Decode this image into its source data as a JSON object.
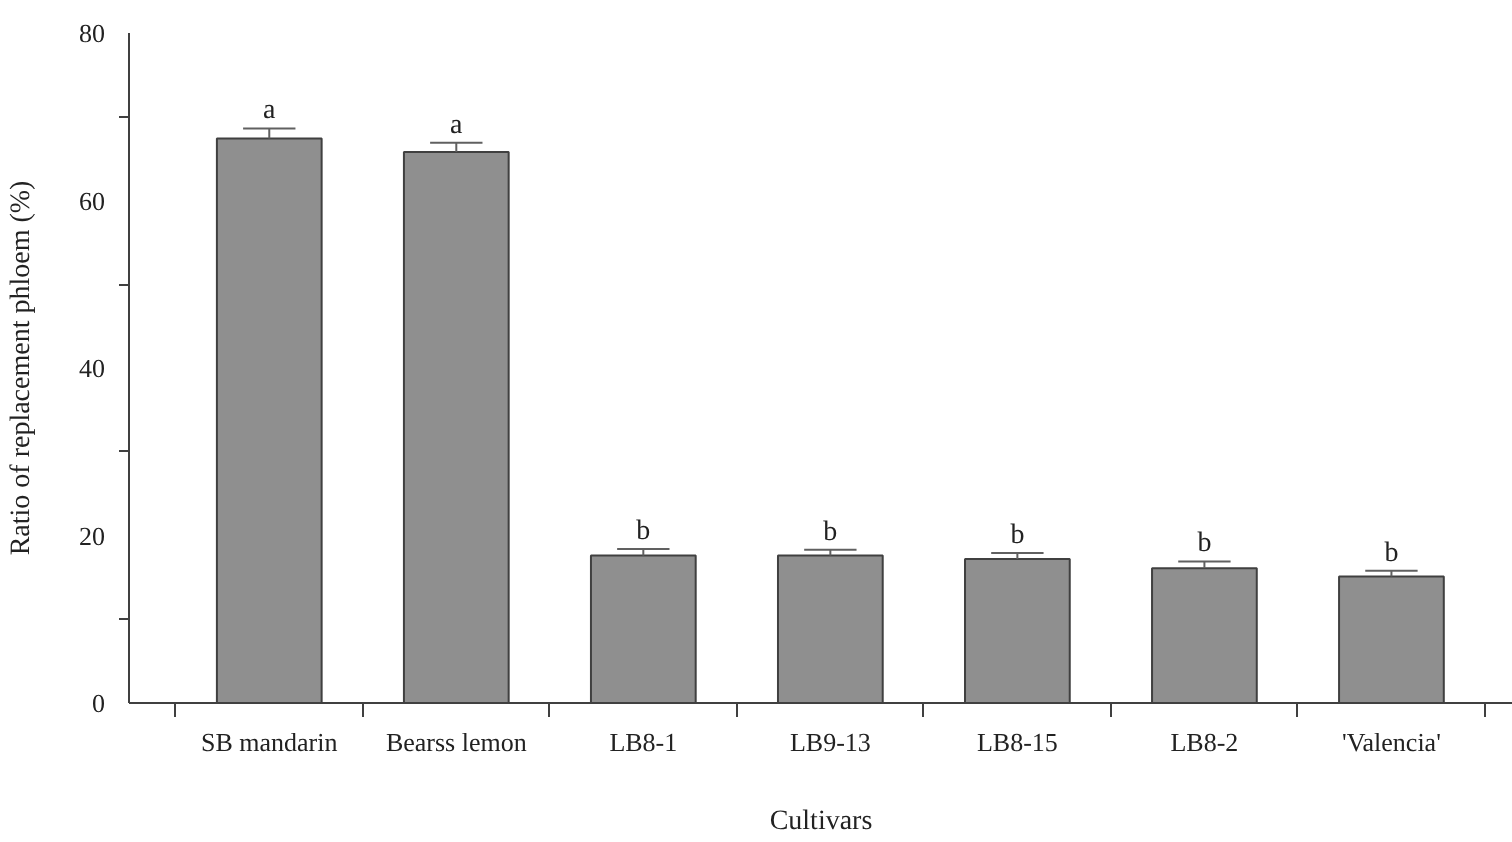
{
  "chart_data": {
    "type": "bar",
    "xlabel": "Cultivars",
    "ylabel": "Ratio of replacement phloem (%)",
    "categories": [
      "SB mandarin",
      "Bearss lemon",
      "LB8-1",
      "LB9-13",
      "LB8-15",
      "LB8-2",
      "'Valencia'"
    ],
    "values": [
      67.4,
      65.8,
      17.6,
      17.6,
      17.2,
      16.1,
      15.1
    ],
    "errors": [
      1.2,
      1.1,
      0.8,
      0.7,
      0.7,
      0.8,
      0.7
    ],
    "color": "#8f8f8f",
    "ylim": [
      0,
      80
    ],
    "yticks": [
      0,
      {
        "value": 10,
        "label": null
      },
      20,
      {
        "value": 30,
        "label": null
      },
      40,
      {
        "value": 50,
        "label": null
      },
      60,
      {
        "value": 70,
        "label": null
      },
      80
    ],
    "grid": false,
    "annotations": [
      {
        "text": "a",
        "x": "SB mandarin",
        "y": 68.6
      },
      {
        "text": "a",
        "x": "Bearss lemon",
        "y": 66.9
      },
      {
        "text": "b",
        "x": "LB8-1",
        "y": 18.4
      },
      {
        "text": "b",
        "x": "LB9-13",
        "y": 18.3
      },
      {
        "text": "b",
        "x": "LB8-15",
        "y": 17.9
      },
      {
        "text": "b",
        "x": "LB8-2",
        "y": 16.9
      },
      {
        "text": "b",
        "x": "'Valencia'",
        "y": 15.8
      }
    ]
  }
}
